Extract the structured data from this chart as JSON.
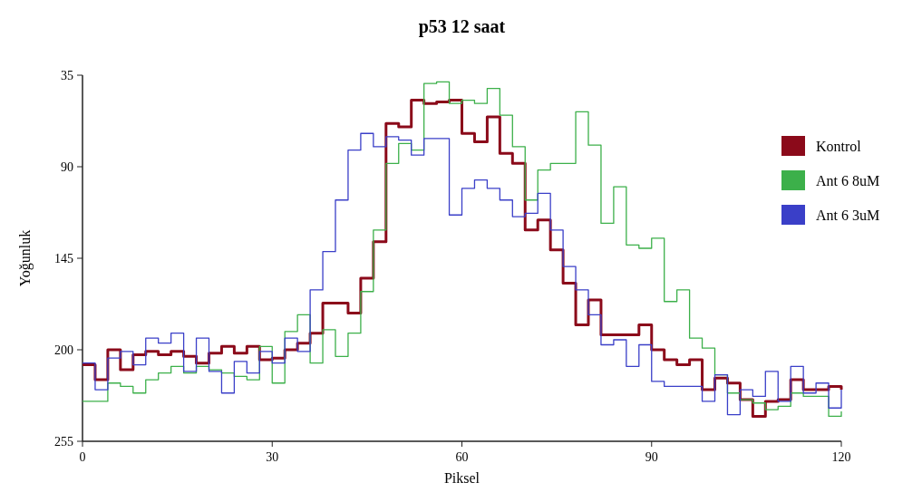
{
  "chart_data": {
    "type": "step",
    "title": "p53 12 saat",
    "xlabel": "Piksel",
    "ylabel": "Yoğunluk",
    "x": [
      0,
      2,
      4,
      6,
      8,
      10,
      12,
      14,
      16,
      18,
      20,
      22,
      24,
      26,
      28,
      30,
      32,
      34,
      36,
      38,
      40,
      42,
      44,
      46,
      48,
      50,
      52,
      54,
      56,
      58,
      60,
      62,
      64,
      66,
      68,
      70,
      72,
      74,
      76,
      78,
      80,
      82,
      84,
      86,
      88,
      90,
      92,
      94,
      96,
      98,
      100,
      102,
      104,
      106,
      108,
      110,
      112,
      114,
      116,
      118,
      120
    ],
    "series": [
      {
        "name": "Kontrol",
        "color": "#8b0a1a",
        "values": [
          209,
          218,
          200,
          212,
          203,
          201,
          203,
          201,
          204,
          208,
          202,
          198,
          202,
          198,
          206,
          205,
          200,
          196,
          190,
          172,
          172,
          178,
          157,
          135,
          64,
          66,
          50,
          52,
          51,
          50,
          70,
          75,
          60,
          82,
          88,
          128,
          122,
          140,
          160,
          185,
          170,
          191,
          191,
          191,
          185,
          200,
          206,
          209,
          206,
          224,
          217,
          220,
          230,
          240,
          231,
          230,
          218,
          224,
          224,
          222,
          224
        ]
      },
      {
        "name": "Ant 6 8uM",
        "color": "#3cb04a",
        "values": [
          231,
          231,
          220,
          222,
          226,
          218,
          214,
          210,
          214,
          210,
          212,
          214,
          216,
          218,
          198,
          220,
          189,
          179,
          208,
          188,
          204,
          190,
          165,
          128,
          88,
          76,
          80,
          40,
          39,
          52,
          50,
          52,
          43,
          59,
          78,
          110,
          92,
          88,
          88,
          57,
          77,
          124,
          102,
          137,
          139,
          133,
          171,
          164,
          193,
          199,
          215,
          226,
          230,
          232,
          236,
          234,
          226,
          228,
          228,
          240,
          237
        ]
      },
      {
        "name": "Ant 6 3uM",
        "color": "#3a3fc8",
        "values": [
          208,
          224,
          205,
          201,
          209,
          193,
          196,
          190,
          213,
          193,
          213,
          226,
          207,
          214,
          201,
          208,
          193,
          201,
          164,
          141,
          110,
          80,
          70,
          78,
          72,
          74,
          83,
          73,
          73,
          119,
          103,
          98,
          103,
          110,
          120,
          118,
          106,
          128,
          150,
          164,
          179,
          197,
          194,
          210,
          197,
          219,
          222,
          222,
          222,
          231,
          215,
          239,
          224,
          228,
          213,
          231,
          210,
          226,
          220,
          235,
          224
        ]
      }
    ],
    "xlim": [
      0,
      120
    ],
    "xticks": [
      0,
      30,
      60,
      90,
      120
    ],
    "ylim": [
      255,
      35
    ],
    "yticks": [
      35,
      90,
      145,
      200,
      255
    ],
    "legend": "right",
    "grid": false
  }
}
